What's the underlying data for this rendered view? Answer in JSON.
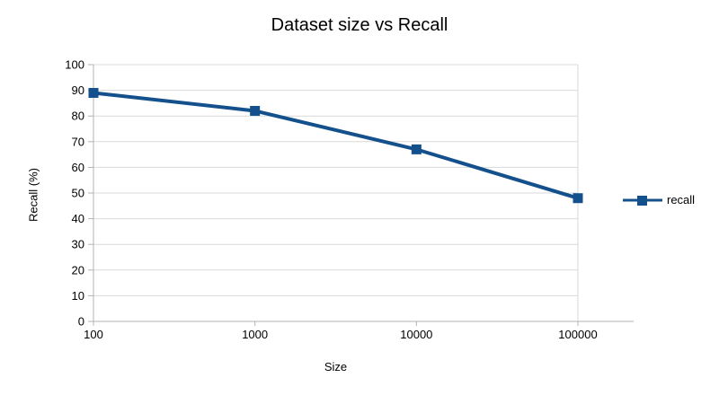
{
  "chart_data": {
    "type": "line",
    "title": "Dataset size vs Recall",
    "xlabel": "Size",
    "ylabel": "Recall (%)",
    "x_scale": "logarithmic-categories",
    "categories": [
      "100",
      "1000",
      "10000",
      "100000"
    ],
    "series": [
      {
        "name": "recall",
        "values": [
          89,
          82,
          67,
          48
        ],
        "color": "#14508c",
        "marker": "square"
      }
    ],
    "ylim": [
      0,
      100
    ],
    "y_ticks": [
      0,
      10,
      20,
      30,
      40,
      50,
      60,
      70,
      80,
      90,
      100
    ],
    "grid": "horizontal",
    "legend_position": "right",
    "colors": {
      "series": "#14508c",
      "grid": "#d9d9d9",
      "axis": "#b3b3b3",
      "text": "#000000",
      "background": "#ffffff"
    }
  }
}
